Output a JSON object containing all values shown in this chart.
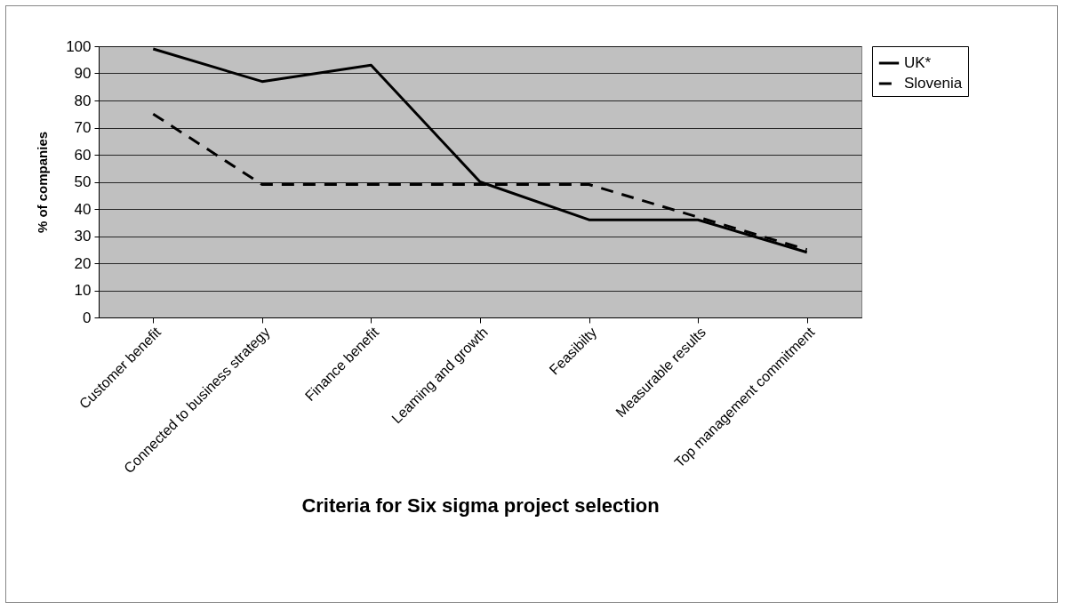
{
  "chart_data": {
    "type": "line",
    "xlabel": "Criteria for Six sigma project selection",
    "ylabel": "% of companies",
    "categories": [
      "Customer benefit",
      "Connected to business strategy",
      "Finance benefit",
      "Leaming and growth",
      "Feasibilty",
      "Measurable results",
      "Top management commitment"
    ],
    "series": [
      {
        "name": "UK*",
        "color": "#000000",
        "line_style": "solid",
        "values": [
          99,
          87,
          93,
          50,
          36,
          36,
          24
        ]
      },
      {
        "name": "Slovenia",
        "color": "#000000",
        "line_style": "dashed",
        "values": [
          75,
          49,
          49,
          49,
          49,
          37,
          25
        ]
      }
    ],
    "ylim": [
      0,
      100
    ],
    "yticks": [
      0,
      10,
      20,
      30,
      40,
      50,
      60,
      70,
      80,
      90,
      100
    ],
    "grid": "y",
    "legend": "right",
    "marker": "none"
  }
}
